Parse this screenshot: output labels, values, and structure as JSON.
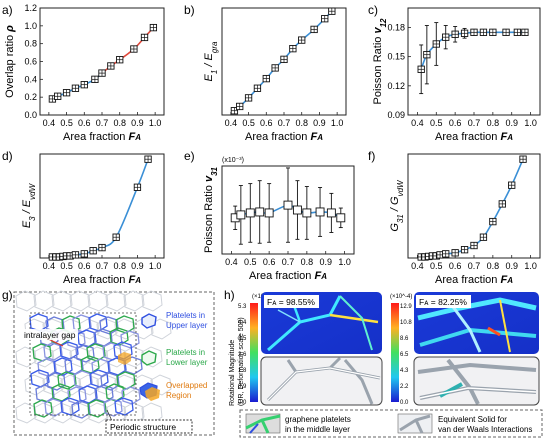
{
  "panels": {
    "a": {
      "letter": "a)"
    },
    "b": {
      "letter": "b)"
    },
    "c": {
      "letter": "c)"
    },
    "d": {
      "letter": "d)"
    },
    "e": {
      "letter": "e)"
    },
    "f": {
      "letter": "f)"
    },
    "g": {
      "letter": "g)",
      "label_gap": "intralayer gap",
      "label_upper": [
        "Platelets in",
        "Upper layer"
      ],
      "label_lower": [
        "Platelets in",
        "Lower layer"
      ],
      "label_overlap": [
        "Overlapped",
        "Region"
      ],
      "label_periodic": "Periodic structure"
    },
    "h": {
      "letter": "h)",
      "ylabel": [
        "Rotational Magnitude",
        "(UR, Deformation scale 500)"
      ],
      "left": {
        "fa_text": "Fᴀ = 98.55%",
        "exp": "(×10^-4)",
        "ticks": [
          "5.3",
          "4.4",
          "3.5",
          "2.6",
          "1.8",
          "0.9",
          "0.0"
        ]
      },
      "right": {
        "fa_text": "Fᴀ = 82.25%",
        "exp": "(×10^-4)",
        "ticks": [
          "12.9",
          "10.8",
          "8.6",
          "6.5",
          "4.3",
          "2.2",
          "0.0"
        ]
      },
      "legend": [
        "graphene platelets",
        "in the middle layer",
        "Equivalent Solid for",
        "van der Waals Interactions"
      ]
    }
  },
  "colors": {
    "blue": "#3a8fd6",
    "red": "#e0493c",
    "cb_top": "#ff2020",
    "cb_bottom": "#1a1ad0"
  },
  "chart_data": [
    {
      "id": "a",
      "type": "line",
      "xlabel": "Area fraction FA",
      "ylabel": "Overlap ratio ρ",
      "xlim": [
        0.35,
        1.05
      ],
      "ylim": [
        0,
        1.2
      ],
      "xticks": [
        "0.4",
        "0.5",
        "0.6",
        "0.7",
        "0.8",
        "0.9",
        "1.0"
      ],
      "yticks": [
        "0.0",
        "0.2",
        "0.4",
        "0.6",
        "0.8",
        "1.0",
        "1.2"
      ],
      "x": [
        0.42,
        0.45,
        0.5,
        0.55,
        0.6,
        0.66,
        0.7,
        0.75,
        0.8,
        0.88,
        0.94,
        0.99
      ],
      "y": [
        0.18,
        0.21,
        0.25,
        0.3,
        0.34,
        0.4,
        0.47,
        0.55,
        0.62,
        0.74,
        0.87,
        0.98
      ],
      "curve_color": "red"
    },
    {
      "id": "b",
      "type": "line",
      "xlabel": "Area fraction FA",
      "ylabel": "E1 / Egra",
      "xlim": [
        0.35,
        1.05
      ],
      "ylim": [
        0,
        1.0
      ],
      "xticks": [
        "0.4",
        "0.5",
        "0.6",
        "0.7",
        "0.8",
        "0.9",
        "1.0"
      ],
      "yticks": [],
      "x": [
        0.42,
        0.45,
        0.5,
        0.55,
        0.6,
        0.65,
        0.7,
        0.75,
        0.8,
        0.87,
        0.93,
        0.97
      ],
      "y": [
        0.04,
        0.08,
        0.16,
        0.25,
        0.34,
        0.44,
        0.52,
        0.62,
        0.7,
        0.8,
        0.9,
        0.97
      ]
    },
    {
      "id": "c",
      "type": "line",
      "xlabel": "Area fraction FA",
      "ylabel": "Poisson Ratio v12",
      "xlim": [
        0.35,
        1.05
      ],
      "ylim": [
        0.09,
        0.2
      ],
      "xticks": [
        "0.4",
        "0.5",
        "0.6",
        "0.7",
        "0.8",
        "0.9",
        "1.0"
      ],
      "yticks": [
        "0.09",
        "0.12",
        "0.15",
        "0.18"
      ],
      "x": [
        0.42,
        0.45,
        0.5,
        0.55,
        0.6,
        0.65,
        0.7,
        0.75,
        0.8,
        0.87,
        0.93,
        0.97
      ],
      "y": [
        0.137,
        0.152,
        0.163,
        0.17,
        0.173,
        0.174,
        0.175,
        0.175,
        0.175,
        0.175,
        0.175,
        0.175
      ],
      "err": [
        0.025,
        0.03,
        0.022,
        0.012,
        0.008,
        0.005,
        0.003,
        0.002,
        0.002,
        0.002,
        0.002,
        0.002
      ]
    },
    {
      "id": "d",
      "type": "line",
      "xlabel": "Area fraction FA",
      "ylabel": "E3 / EvdW",
      "xlim": [
        0.35,
        1.05
      ],
      "ylim": [
        0,
        1.0
      ],
      "xticks": [
        "0.4",
        "0.5",
        "0.6",
        "0.7",
        "0.8",
        "0.9",
        "1.0"
      ],
      "yticks": [],
      "x": [
        0.42,
        0.44,
        0.46,
        0.48,
        0.5,
        0.52,
        0.55,
        0.6,
        0.65,
        0.7,
        0.78,
        0.9,
        0.96
      ],
      "y": [
        0.01,
        0.01,
        0.01,
        0.015,
        0.02,
        0.02,
        0.03,
        0.04,
        0.07,
        0.1,
        0.2,
        0.68,
        0.95
      ]
    },
    {
      "id": "e",
      "type": "line",
      "exponent": "(x10⁻³)",
      "xlabel": "Area fraction FA",
      "ylabel": "Poisson Ratio v31",
      "xlim": [
        0.35,
        1.05
      ],
      "ylim": [
        -0.3,
        0.6
      ],
      "xticks": [
        "0.4",
        "0.5",
        "0.6",
        "0.7",
        "0.8",
        "0.9",
        "1.0"
      ],
      "yticks": [],
      "x": [
        0.42,
        0.45,
        0.5,
        0.55,
        0.6,
        0.7,
        0.75,
        0.8,
        0.87,
        0.93,
        0.98
      ],
      "y": [
        0.07,
        0.1,
        0.12,
        0.13,
        0.12,
        0.2,
        0.15,
        0.12,
        0.13,
        0.12,
        0.07
      ],
      "err": [
        0.12,
        0.3,
        0.3,
        0.32,
        0.3,
        0.38,
        0.3,
        0.27,
        0.25,
        0.2,
        0.1
      ]
    },
    {
      "id": "f",
      "type": "line",
      "xlabel": "Area fraction FA",
      "ylabel": "G31 / GvdW",
      "xlim": [
        0.35,
        1.05
      ],
      "ylim": [
        0,
        1.0
      ],
      "xticks": [
        "0.4",
        "0.5",
        "0.6",
        "0.7",
        "0.8",
        "0.9",
        "1.0"
      ],
      "yticks": [],
      "x": [
        0.42,
        0.44,
        0.46,
        0.48,
        0.5,
        0.52,
        0.55,
        0.6,
        0.65,
        0.7,
        0.75,
        0.8,
        0.85,
        0.9,
        0.96
      ],
      "y": [
        0.01,
        0.01,
        0.015,
        0.02,
        0.02,
        0.03,
        0.04,
        0.05,
        0.08,
        0.12,
        0.2,
        0.35,
        0.52,
        0.7,
        0.95
      ]
    }
  ]
}
